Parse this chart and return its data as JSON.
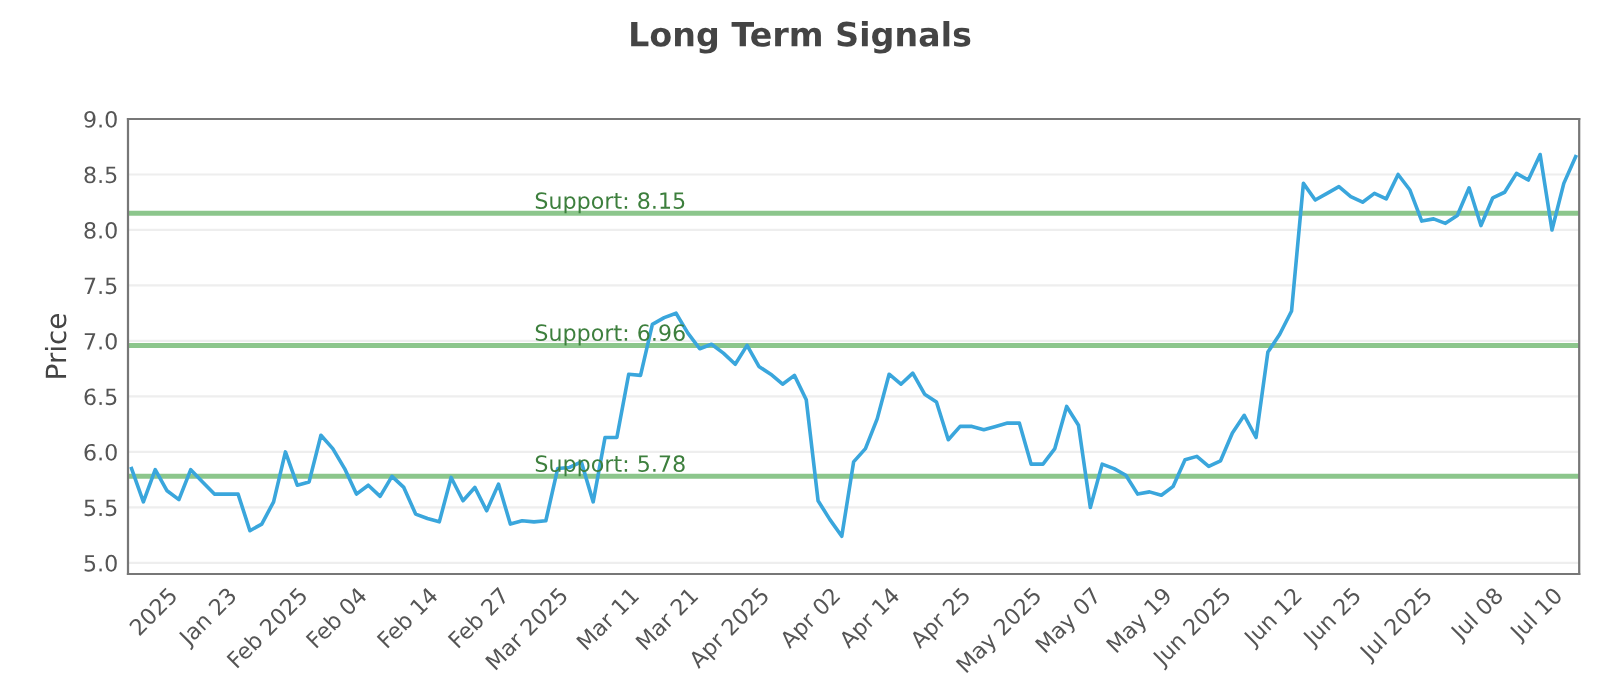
{
  "chart_data": {
    "type": "line",
    "title": "Long Term Signals",
    "ylabel": "Price",
    "categories": [
      null,
      null,
      null,
      "2025",
      null,
      null,
      null,
      null,
      "Jan 23",
      null,
      null,
      null,
      null,
      null,
      "Feb 2025",
      null,
      null,
      null,
      null,
      "Feb 04",
      null,
      null,
      null,
      null,
      null,
      "Feb 14",
      null,
      null,
      null,
      null,
      null,
      "Feb 27",
      null,
      null,
      null,
      null,
      "Mar 2025",
      null,
      null,
      null,
      null,
      null,
      "Mar 11",
      null,
      null,
      null,
      null,
      "Mar 21",
      null,
      null,
      null,
      null,
      null,
      "Apr 2025",
      null,
      null,
      null,
      null,
      null,
      "Apr 02",
      null,
      null,
      null,
      null,
      "Apr 14",
      null,
      null,
      null,
      null,
      null,
      "Apr 25",
      null,
      null,
      null,
      null,
      null,
      "May 2025",
      null,
      null,
      null,
      null,
      "May 07",
      null,
      null,
      null,
      null,
      null,
      "May 19",
      null,
      null,
      null,
      null,
      "Jun 2025",
      null,
      null,
      null,
      null,
      null,
      "Jun 12",
      null,
      null,
      null,
      null,
      "Jun 25",
      null,
      null,
      null,
      null,
      null,
      "Jul 2025",
      null,
      null,
      null,
      null,
      null,
      "Jul 08",
      null,
      null,
      null,
      null,
      "Jul 10",
      null,
      null
    ],
    "series": [
      {
        "color": "#3aa6dc",
        "values": [
          5.85,
          5.55,
          5.84,
          5.65,
          5.57,
          5.84,
          5.73,
          5.62,
          5.62,
          5.62,
          5.29,
          5.35,
          5.55,
          6.0,
          5.7,
          5.73,
          6.15,
          6.03,
          5.85,
          5.62,
          5.7,
          5.6,
          5.78,
          5.68,
          5.44,
          5.4,
          5.37,
          5.77,
          5.56,
          5.68,
          5.47,
          5.71,
          5.35,
          5.38,
          5.37,
          5.38,
          5.85,
          5.86,
          5.91,
          5.55,
          6.13,
          6.13,
          6.7,
          6.69,
          7.15,
          7.21,
          7.25,
          7.07,
          6.93,
          6.97,
          6.89,
          6.79,
          6.96,
          6.77,
          6.7,
          6.61,
          6.69,
          6.47,
          5.56,
          5.39,
          5.24,
          5.91,
          6.03,
          6.3,
          6.7,
          6.61,
          6.71,
          6.52,
          6.45,
          6.11,
          6.23,
          6.23,
          6.2,
          6.23,
          6.26,
          6.26,
          5.89,
          5.89,
          6.03,
          6.41,
          6.24,
          5.5,
          5.89,
          5.85,
          5.79,
          5.62,
          5.64,
          5.61,
          5.69,
          5.93,
          5.96,
          5.87,
          5.92,
          6.17,
          6.33,
          6.13,
          6.9,
          7.06,
          7.27,
          8.42,
          8.27,
          8.33,
          8.39,
          8.3,
          8.25,
          8.33,
          8.28,
          8.5,
          8.36,
          8.08,
          8.1,
          8.06,
          8.13,
          8.38,
          8.04,
          8.29,
          8.34,
          8.51,
          8.45,
          8.68,
          8.0,
          8.42,
          8.66
        ]
      }
    ],
    "ylim": [
      4.9,
      9.0
    ],
    "yticks": [
      {
        "value": 5.0,
        "label": "5.0"
      },
      {
        "value": 5.5,
        "label": "5.5"
      },
      {
        "value": 6.0,
        "label": "6.0"
      },
      {
        "value": 6.5,
        "label": "6.5"
      },
      {
        "value": 7.0,
        "label": "7.0"
      },
      {
        "value": 7.5,
        "label": "7.5"
      },
      {
        "value": 8.0,
        "label": "8.0"
      },
      {
        "value": 8.5,
        "label": "8.5"
      },
      {
        "value": 9.0,
        "label": "9.0"
      }
    ],
    "grid": "y",
    "marker": "none",
    "line_style": "solid",
    "ref_lines": [
      {
        "axis": "y",
        "value": 8.15,
        "label": "Support: 8.15",
        "color": "#8cc68c"
      },
      {
        "axis": "y",
        "value": 6.96,
        "label": "Support: 6.96",
        "color": "#8cc68c"
      },
      {
        "axis": "y",
        "value": 5.78,
        "label": "Support: 5.78",
        "color": "#8cc68c"
      }
    ]
  }
}
